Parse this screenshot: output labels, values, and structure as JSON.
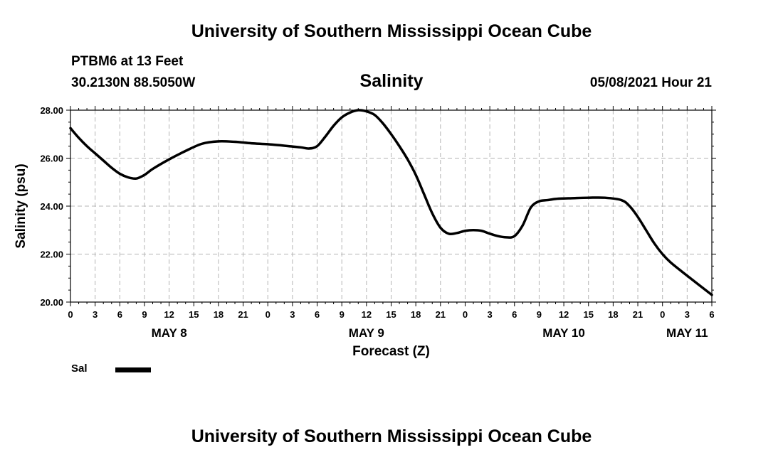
{
  "header": {
    "title": "University of Southern Mississippi Ocean Cube",
    "station": "PTBM6 at 13 Feet",
    "coords": "30.2130N  88.5050W",
    "parameter": "Salinity",
    "datetime": "05/08/2021 Hour 21"
  },
  "footer": {
    "title": "University of Southern Mississippi Ocean Cube"
  },
  "legend": {
    "label": "Sal"
  },
  "chart_data": {
    "type": "line",
    "title": "Salinity",
    "xlabel": "Forecast (Z)",
    "ylabel": "Salinity (psu)",
    "xlim": [
      0,
      78
    ],
    "ylim": [
      20,
      28
    ],
    "yticks": [
      20,
      22,
      24,
      26,
      28
    ],
    "ytick_labels": [
      "20.00",
      "22.00",
      "24.00",
      "26.00",
      "28.00"
    ],
    "xticks": [
      0,
      3,
      6,
      9,
      12,
      15,
      18,
      21,
      24,
      27,
      30,
      33,
      36,
      39,
      42,
      45,
      48,
      51,
      54,
      57,
      60,
      63,
      66,
      69,
      72,
      75,
      78
    ],
    "xtick_labels": [
      "0",
      "3",
      "6",
      "9",
      "12",
      "15",
      "18",
      "21",
      "0",
      "3",
      "6",
      "9",
      "12",
      "15",
      "18",
      "21",
      "0",
      "3",
      "6",
      "9",
      "12",
      "15",
      "18",
      "21",
      "0",
      "3",
      "6"
    ],
    "day_labels": [
      {
        "x": 12,
        "label": "MAY 8"
      },
      {
        "x": 36,
        "label": "MAY 9"
      },
      {
        "x": 60,
        "label": "MAY 10"
      },
      {
        "x": 75,
        "label": "MAY 11"
      }
    ],
    "grid": true,
    "series": [
      {
        "name": "Sal",
        "color": "#000000",
        "x": [
          0,
          1,
          2,
          3,
          4,
          5,
          6,
          7,
          8,
          9,
          10,
          12,
          14,
          16,
          18,
          20,
          22,
          24,
          26,
          28,
          29,
          30,
          31,
          32,
          33,
          34,
          35,
          36,
          37,
          38,
          39,
          40,
          41,
          42,
          43,
          44,
          45,
          46,
          47,
          48,
          49,
          50,
          51,
          52,
          53,
          54,
          55,
          56,
          57,
          58,
          59,
          60,
          61,
          63,
          65,
          67,
          68,
          69,
          70,
          71,
          72,
          73,
          75,
          78
        ],
        "values": [
          27.25,
          26.85,
          26.5,
          26.2,
          25.9,
          25.6,
          25.35,
          25.2,
          25.15,
          25.3,
          25.55,
          25.95,
          26.3,
          26.6,
          26.7,
          26.68,
          26.62,
          26.58,
          26.52,
          26.45,
          26.4,
          26.5,
          26.9,
          27.35,
          27.7,
          27.9,
          28.0,
          27.95,
          27.8,
          27.45,
          27.0,
          26.5,
          25.95,
          25.3,
          24.5,
          23.7,
          23.1,
          22.85,
          22.88,
          22.97,
          23.0,
          22.97,
          22.85,
          22.75,
          22.7,
          22.75,
          23.2,
          23.95,
          24.2,
          24.25,
          24.3,
          24.32,
          24.33,
          24.35,
          24.35,
          24.25,
          24.0,
          23.55,
          23.0,
          22.45,
          22.0,
          21.65,
          21.1,
          20.3
        ]
      }
    ]
  }
}
